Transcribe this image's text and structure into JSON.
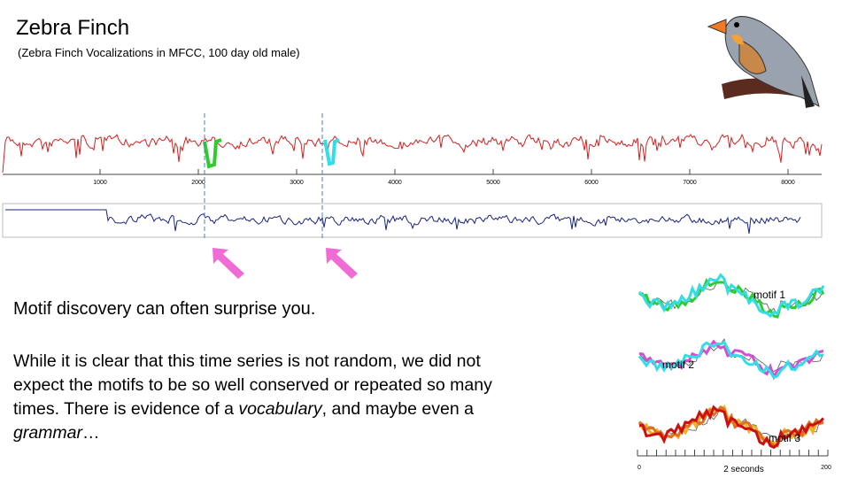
{
  "header": {
    "title": "Zebra Finch",
    "subtitle": "(Zebra Finch Vocalizations in MFCC, 100 day old male)"
  },
  "series_axis": {
    "ticks": [
      1000,
      2000,
      3000,
      4000,
      5000,
      6000,
      7000,
      8000
    ]
  },
  "body": {
    "heading": "Motif discovery can often surprise you.",
    "paragraph": [
      "While it is clear that this time series is not random, we did not expect the motifs to be so well conserved or repeated so many times. There is evidence of a ",
      "vocabulary",
      ", and maybe even a ",
      "grammar",
      "…"
    ]
  },
  "motifs": {
    "labels": [
      "motif 1",
      "motif 2",
      "motif 3"
    ],
    "axis": {
      "start": "0",
      "span": "2 seconds",
      "end": "200"
    }
  }
}
